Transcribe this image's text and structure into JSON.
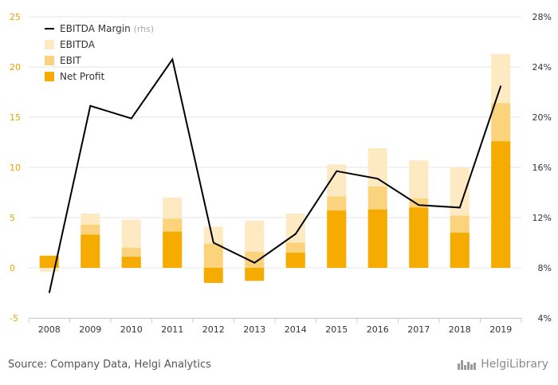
{
  "chart_data": {
    "type": "bar",
    "categories": [
      "2008",
      "2009",
      "2010",
      "2011",
      "2012",
      "2013",
      "2014",
      "2015",
      "2016",
      "2017",
      "2018",
      "2019"
    ],
    "series": [
      {
        "name": "Net Profit",
        "values": [
          1.2,
          3.3,
          1.1,
          3.6,
          -1.5,
          -1.3,
          1.5,
          5.7,
          5.8,
          6.0,
          3.5,
          12.6
        ],
        "color": "#f5ab00"
      },
      {
        "name": "EBIT",
        "values": [
          1.2,
          4.3,
          2.0,
          4.9,
          2.4,
          1.6,
          2.5,
          7.1,
          8.1,
          6.9,
          5.2,
          16.4
        ],
        "color": "#fbd37d"
      },
      {
        "name": "EBITDA",
        "values": [
          -0.4,
          5.4,
          4.8,
          7.0,
          4.1,
          4.7,
          5.4,
          10.3,
          11.9,
          10.7,
          10.0,
          21.3
        ],
        "color": "#feeac2"
      },
      {
        "name": "EBITDA Margin",
        "suffix": "(rhs)",
        "axis": "right",
        "type": "line",
        "values": [
          6.0,
          20.9,
          19.9,
          24.6,
          10.0,
          8.4,
          10.7,
          15.7,
          15.1,
          13.0,
          12.8,
          22.5
        ],
        "color": "#000000"
      }
    ],
    "ylim_left": [
      -5,
      25
    ],
    "yticks_left": [
      -5,
      0,
      5,
      10,
      15,
      20,
      25
    ],
    "ylim_right": [
      4,
      28
    ],
    "yticks_right": [
      "4%",
      "8%",
      "12%",
      "16%",
      "20%",
      "24%",
      "28%"
    ],
    "grid": true,
    "legend_position": "top-left"
  },
  "source_text": "Source: Company Data, Helgi Analytics",
  "logo": {
    "text": "HelgiLibrary",
    "icon": "city-skyline-icon"
  }
}
